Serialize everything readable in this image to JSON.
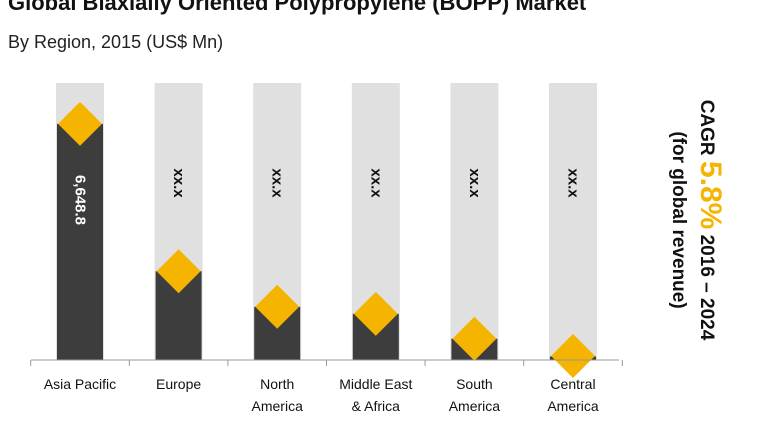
{
  "chart_data": {
    "type": "bar",
    "title": "Global Biaxially Oriented Polypropylene (BOPP) Market",
    "subtitle": "By Region, 2015 (US$ Mn)",
    "categories": [
      {
        "line1": "Asia Pacific",
        "line2": ""
      },
      {
        "line1": "Europe",
        "line2": ""
      },
      {
        "line1": "North",
        "line2": "America"
      },
      {
        "line1": "Middle East",
        "line2": "& Africa"
      },
      {
        "line1": "South",
        "line2": "America"
      },
      {
        "line1": "Central",
        "line2": "America"
      }
    ],
    "values": [
      6648.8,
      2500,
      1500,
      1300,
      600,
      100
    ],
    "value_labels": [
      "6,648.8",
      "xx.x",
      "xx.x",
      "xx.x",
      "xx.x",
      "xx.x"
    ],
    "ylim": [
      0,
      7800
    ],
    "cagr": {
      "prefix": "CAGR",
      "value": "5.8%",
      "period": "2016 – 2024",
      "note": "(for global revenue)"
    },
    "colors": {
      "bar": "#3d3d3d",
      "background_bar": "#e0e0e0",
      "marker": "#f4b400",
      "axis": "#999999"
    }
  }
}
